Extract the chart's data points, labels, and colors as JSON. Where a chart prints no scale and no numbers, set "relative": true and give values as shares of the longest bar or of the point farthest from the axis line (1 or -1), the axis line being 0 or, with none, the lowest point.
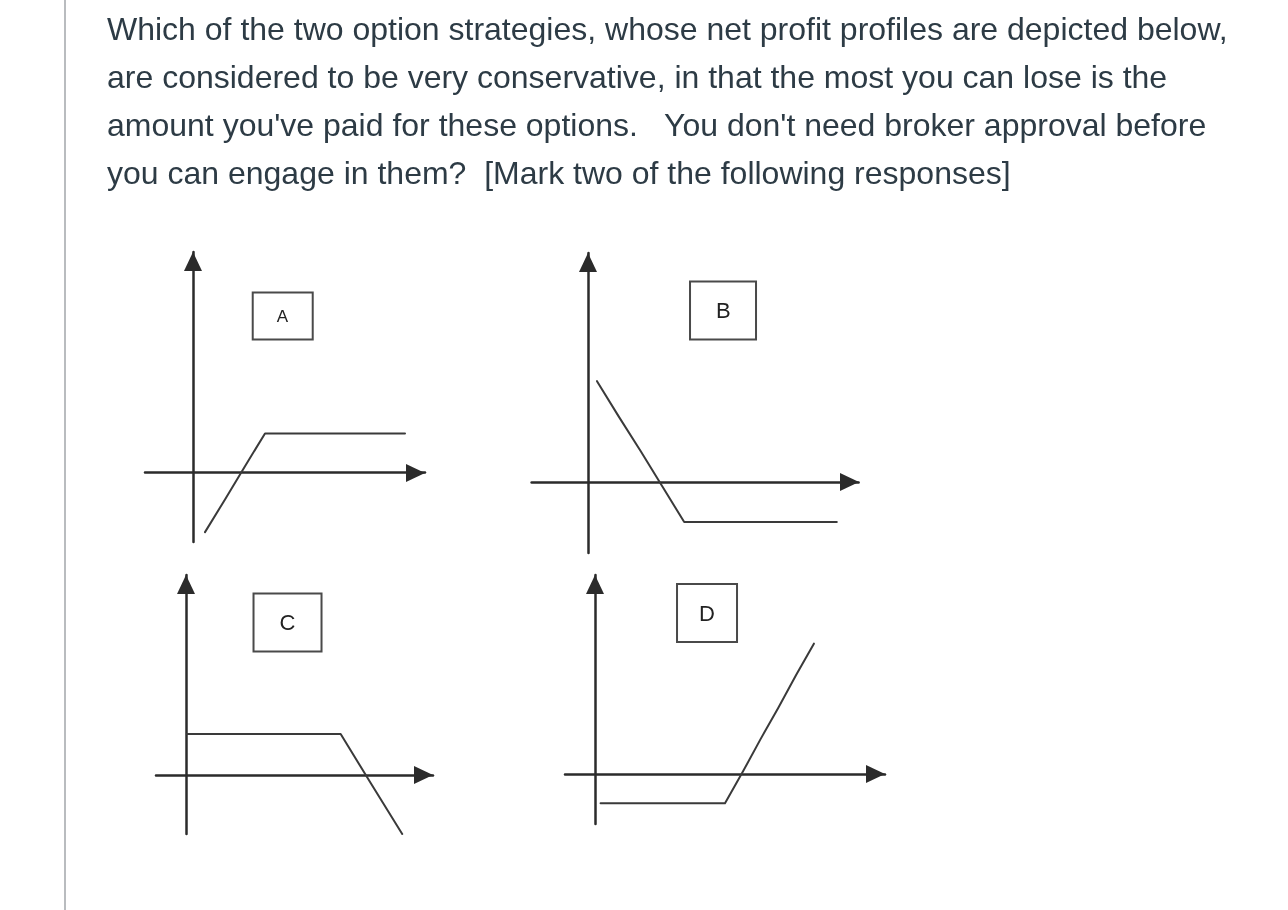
{
  "chart_data": [
    {
      "type": "other",
      "title": "Which of the two option strategies, whose net profit profiles are depicted below, are considered to be very conservative, in that the most you can lose is the amount you've paid for these options.   You don't need broker approval before you can engage in them?  [Mark two of the following responses]"
    },
    {
      "type": "line",
      "title": "A",
      "relative": true,
      "marker": "none",
      "categories": [
        null,
        null,
        null,
        null,
        null,
        null,
        null,
        null,
        null,
        null,
        null,
        null,
        null,
        null,
        null
      ],
      "series": [
        {
          "color": "#3a3a3a",
          "values": [
            null,
            null,
            null,
            -1,
            -0.45,
            0.11,
            0.66,
            0.66,
            0.66,
            0.66,
            0.66,
            0.66,
            0.66,
            0.66,
            null
          ]
        }
      ]
    },
    {
      "type": "line",
      "title": "B",
      "relative": true,
      "marker": "none",
      "categories": [
        null,
        null,
        null,
        null,
        null,
        null,
        null,
        null,
        null,
        null,
        null,
        null,
        null,
        null,
        null,
        null
      ],
      "series": [
        {
          "color": "#3a3a3a",
          "values": [
            null,
            null,
            null,
            1,
            0.65,
            0.31,
            -0.04,
            -0.39,
            -0.39,
            -0.39,
            -0.39,
            -0.39,
            -0.39,
            -0.39,
            -0.39,
            null
          ]
        }
      ]
    },
    {
      "type": "line",
      "title": "C",
      "relative": true,
      "marker": "none",
      "categories": [
        null,
        null,
        null,
        null,
        null,
        null,
        null,
        null,
        null,
        null
      ],
      "series": [
        {
          "color": "#3a3a3a",
          "values": [
            null,
            0.69,
            0.69,
            0.69,
            0.69,
            0.69,
            0.69,
            -0.16,
            -1,
            null
          ]
        }
      ]
    },
    {
      "type": "line",
      "title": "D",
      "relative": true,
      "marker": "none",
      "categories": [
        null,
        null,
        null,
        null,
        null,
        null,
        null,
        null,
        null,
        null,
        null,
        null,
        null,
        null,
        null,
        null,
        null,
        null,
        null
      ],
      "series": [
        {
          "color": "#3a3a3a",
          "values": [
            null,
            null,
            -0.22,
            -0.22,
            -0.22,
            -0.22,
            -0.22,
            -0.22,
            -0.22,
            -0.22,
            0.02,
            0.27,
            0.51,
            0.76,
            1,
            null,
            null,
            null,
            null
          ]
        }
      ]
    }
  ]
}
